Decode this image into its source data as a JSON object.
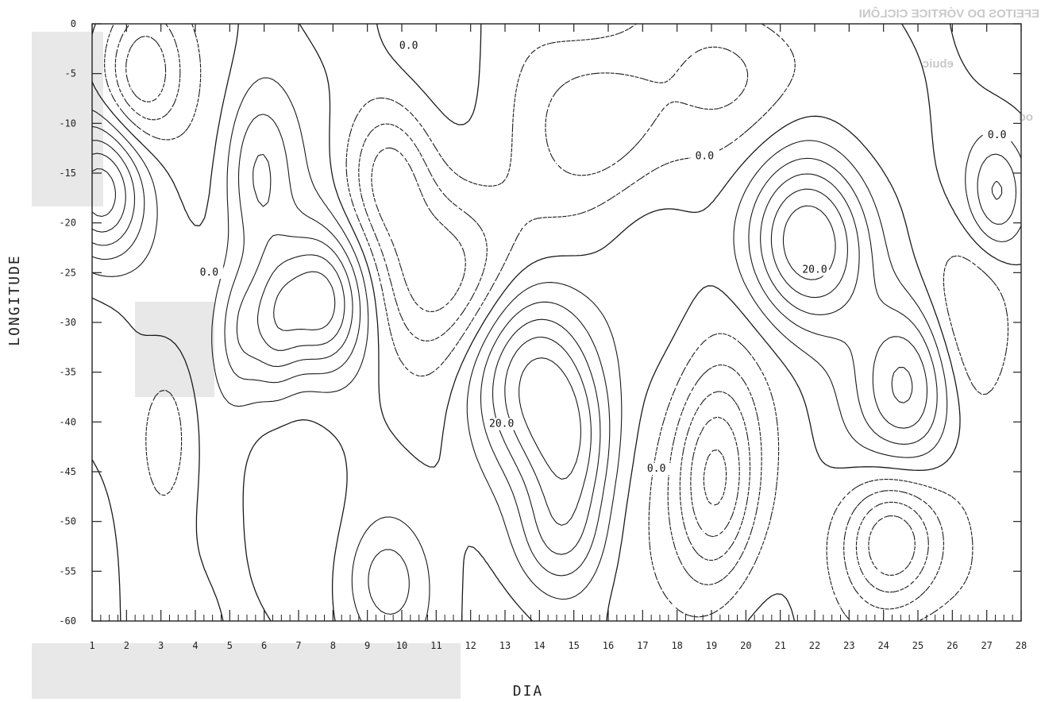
{
  "chart_data": {
    "type": "contour",
    "xlabel": "DIA",
    "ylabel": "LONGITUDE",
    "xlim": [
      1,
      28
    ],
    "ylim": [
      -60,
      0
    ],
    "x_ticks": [
      "1",
      "2",
      "3",
      "4",
      "5",
      "6",
      "7",
      "8",
      "9",
      "10",
      "11",
      "12",
      "13",
      "14",
      "15",
      "16",
      "17",
      "18",
      "19",
      "20",
      "21",
      "22",
      "23",
      "24",
      "25",
      "26",
      "27",
      "28"
    ],
    "y_ticks": [
      "0",
      "-5",
      "-10",
      "-15",
      "-20",
      "-25",
      "-30",
      "-35",
      "-40",
      "-45",
      "-50",
      "-55",
      "-60"
    ],
    "contour_labels": [
      {
        "text": "0.0",
        "x": 10.2,
        "y": -2.5
      },
      {
        "text": "0.0",
        "x": 4.4,
        "y": -25.3
      },
      {
        "text": "0.0",
        "x": 18.8,
        "y": -13.6
      },
      {
        "text": "0.0",
        "x": 27.3,
        "y": -11.5
      },
      {
        "text": "20.0",
        "x": 12.9,
        "y": -40.5
      },
      {
        "text": "20.0",
        "x": 22.0,
        "y": -25.0
      },
      {
        "text": "0.0",
        "x": 17.4,
        "y": -45.0
      }
    ],
    "positive_contours": "solid",
    "negative_contours": "dashed",
    "grid": false
  },
  "bleed_text": [
    "EFEITOS DO VÓRTICE CICLÔNI",
    "ebuic",
    "od"
  ]
}
